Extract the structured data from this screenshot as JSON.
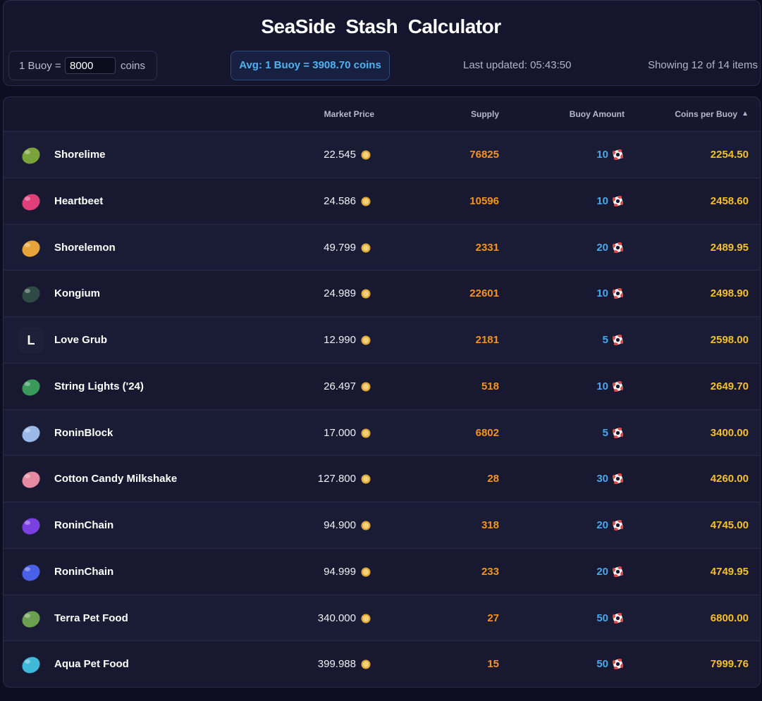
{
  "header": {
    "title": "SeaSide  Stash  Calculator",
    "rate_prefix": "1 Buoy =",
    "rate_input": "8000",
    "rate_suffix": "coins",
    "average": "Avg: 1 Buoy = 3908.70 coins",
    "last_updated": "Last updated: 05:43:50",
    "showing": "Showing 12 of 14 items"
  },
  "table": {
    "columns": [
      "Market Price",
      "Supply",
      "Buoy Amount",
      "Coins per Buoy"
    ],
    "sort_indicator": "▲",
    "rows": [
      {
        "name": "Shorelime",
        "price": "22.545",
        "supply": "76825",
        "buoy_amount": "10",
        "coins_per_buoy": "2254.50"
      },
      {
        "name": "Heartbeet",
        "price": "24.586",
        "supply": "10596",
        "buoy_amount": "10",
        "coins_per_buoy": "2458.60"
      },
      {
        "name": "Shorelemon",
        "price": "49.799",
        "supply": "2331",
        "buoy_amount": "20",
        "coins_per_buoy": "2489.95"
      },
      {
        "name": "Kongium",
        "price": "24.989",
        "supply": "22601",
        "buoy_amount": "10",
        "coins_per_buoy": "2498.90"
      },
      {
        "name": "Love Grub",
        "icon_text": "L",
        "price": "12.990",
        "supply": "2181",
        "buoy_amount": "5",
        "coins_per_buoy": "2598.00"
      },
      {
        "name": "String Lights ('24)",
        "price": "26.497",
        "supply": "518",
        "buoy_amount": "10",
        "coins_per_buoy": "2649.70"
      },
      {
        "name": "RoninBlock",
        "price": "17.000",
        "supply": "6802",
        "buoy_amount": "5",
        "coins_per_buoy": "3400.00"
      },
      {
        "name": "Cotton Candy Milkshake",
        "price": "127.800",
        "supply": "28",
        "buoy_amount": "30",
        "coins_per_buoy": "4260.00"
      },
      {
        "name": "RoninChain",
        "price": "94.900",
        "supply": "318",
        "buoy_amount": "20",
        "coins_per_buoy": "4745.00"
      },
      {
        "name": "RoninChain",
        "price": "94.999",
        "supply": "233",
        "buoy_amount": "20",
        "coins_per_buoy": "4749.95"
      },
      {
        "name": "Terra Pet Food",
        "price": "340.000",
        "supply": "27",
        "buoy_amount": "50",
        "coins_per_buoy": "6800.00"
      },
      {
        "name": "Aqua Pet Food",
        "price": "399.988",
        "supply": "15",
        "buoy_amount": "50",
        "coins_per_buoy": "7999.76"
      }
    ]
  }
}
